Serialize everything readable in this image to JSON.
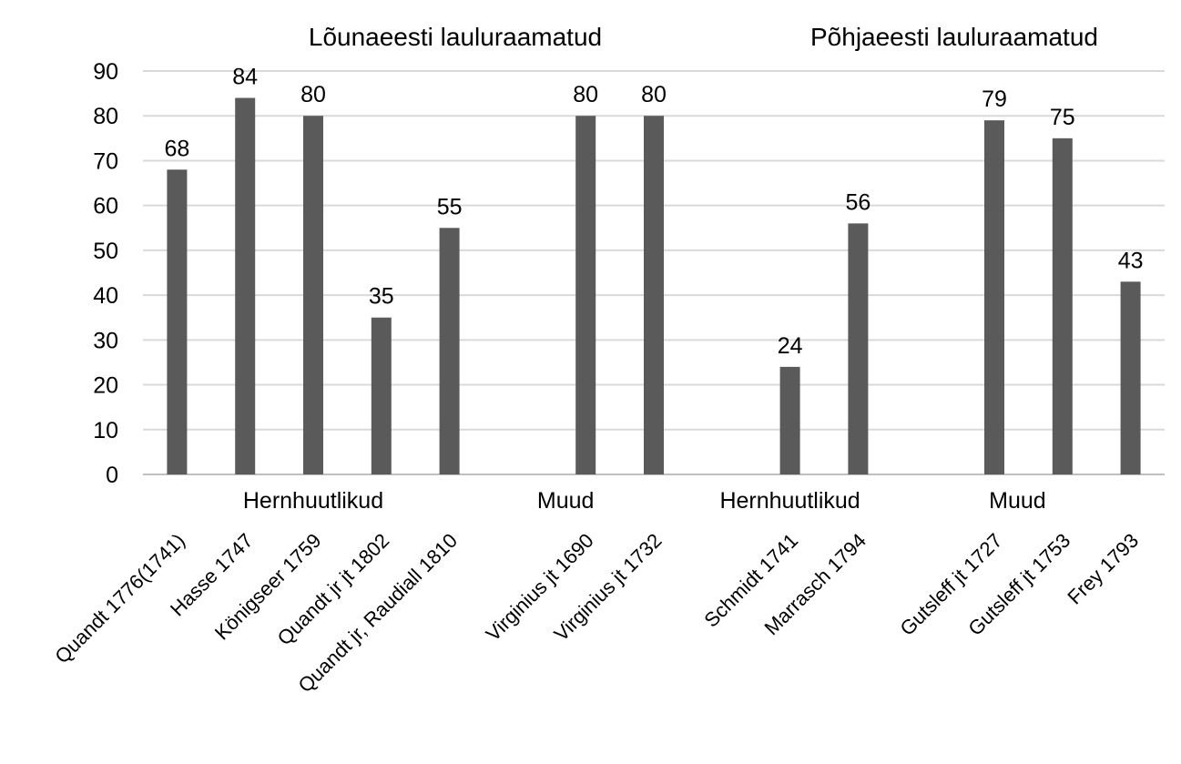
{
  "chart_data": {
    "type": "bar",
    "title": "",
    "xlabel": "",
    "ylabel": "",
    "ylim": [
      0,
      90
    ],
    "yticks": [
      0,
      10,
      20,
      30,
      40,
      50,
      60,
      70,
      80,
      90
    ],
    "grid": true,
    "bar_color": "#5a5a5a",
    "grid_color": "#d9d9d9",
    "categories": [
      "Quandt 1776(1741)",
      "Hasse 1747",
      "Königseer 1759",
      "Quandt jr jt 1802",
      "Quandt jr, Raudiall 1810",
      "",
      "Virginius jt 1690",
      "Virginius jt 1732",
      "",
      "Schmidt 1741",
      "Marrasch 1794",
      "",
      "Gutsleff jt 1727",
      "Gutsleff jt 1753",
      "Frey 1793"
    ],
    "values": [
      68,
      84,
      80,
      35,
      55,
      null,
      80,
      80,
      null,
      24,
      56,
      null,
      79,
      75,
      43
    ],
    "data_labels": [
      "68",
      "84",
      "80",
      "35",
      "55",
      "",
      "80",
      "80",
      "",
      "24",
      "56",
      "",
      "79",
      "75",
      "43"
    ],
    "subgroups": [
      {
        "label": "Hernhuutlikud",
        "from": 0,
        "to": 4
      },
      {
        "label": "Muud",
        "from": 5,
        "to": 7
      },
      {
        "label": "Hernhuutlikud",
        "from": 8,
        "to": 10
      },
      {
        "label": "Muud",
        "from": 11,
        "to": 14
      }
    ],
    "groups": [
      {
        "label": "Lõunaeesti lauluraamatud",
        "from": 0,
        "to": 7
      },
      {
        "label": "Põhjaeesti lauluraamatud",
        "from": 8,
        "to": 14
      }
    ]
  }
}
